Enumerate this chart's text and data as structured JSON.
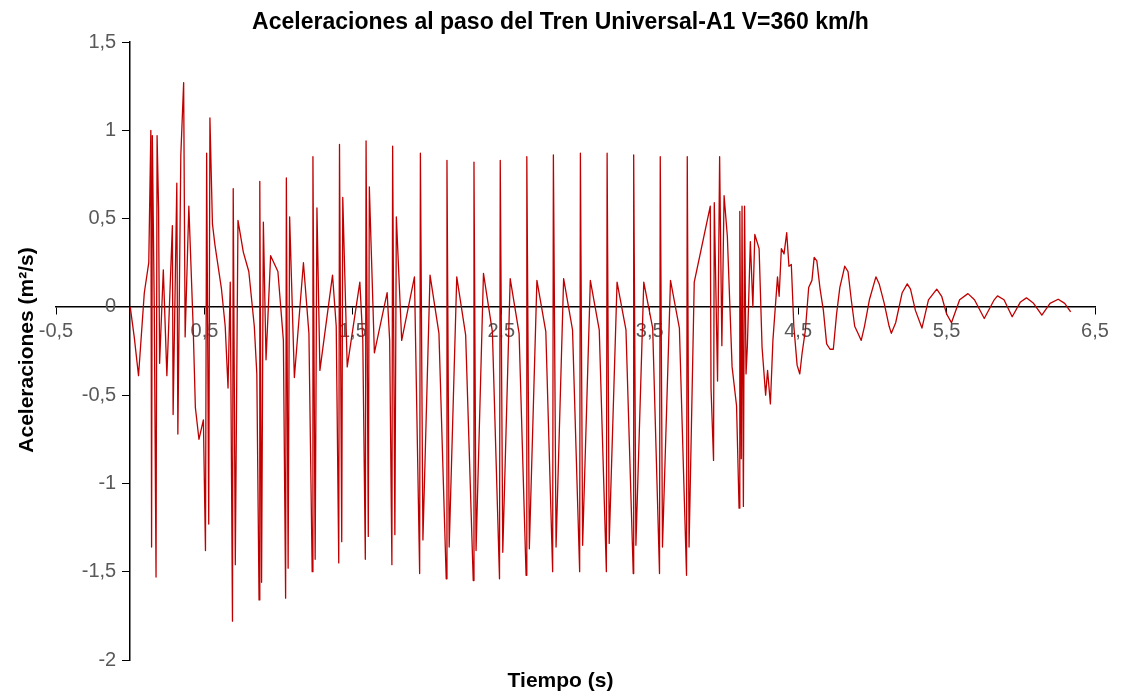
{
  "chart_data": {
    "type": "line",
    "title": "Aceleraciones al paso del Tren Universal-A1 V=360 km/h",
    "xlabel": "Tiempo (s)",
    "ylabel": "Aceleraciones (m²/s)",
    "xlim": [
      -0.5,
      6.5
    ],
    "xticks": [
      {
        "value": -0.5,
        "label": "-0,5"
      },
      {
        "value": 0.5,
        "label": "0,5"
      },
      {
        "value": 1.5,
        "label": "1,5"
      },
      {
        "value": 2.5,
        "label": "2,5"
      },
      {
        "value": 3.5,
        "label": "3,5"
      },
      {
        "value": 4.5,
        "label": "4,5"
      },
      {
        "value": 5.5,
        "label": "5,5"
      },
      {
        "value": 6.5,
        "label": "6,5"
      }
    ],
    "ylim": [
      -2,
      1.5
    ],
    "yticks": [
      {
        "value": -2,
        "label": "-2"
      },
      {
        "value": -1.5,
        "label": "-1,5"
      },
      {
        "value": -1,
        "label": "-1"
      },
      {
        "value": -0.5,
        "label": "-0,5"
      },
      {
        "value": 0,
        "label": "0"
      },
      {
        "value": 0.5,
        "label": "0,5"
      },
      {
        "value": 1,
        "label": "1"
      },
      {
        "value": 1.5,
        "label": "1,5"
      }
    ],
    "grid": false,
    "legend": false,
    "marker": "none",
    "line_style": "solid",
    "series": [
      {
        "color": "#c00000",
        "x": [
          0,
          0.027,
          0.056,
          0.095,
          0.125,
          0.139,
          0.144,
          0.149,
          0.162,
          0.174,
          0.181,
          0.191,
          0.198,
          0.223,
          0.247,
          0.284,
          0.289,
          0.314,
          0.321,
          0.341,
          0.36,
          0.37,
          0.395,
          0.424,
          0.439,
          0.463,
          0.493,
          0.507,
          0.515,
          0.529,
          0.537,
          0.554,
          0.571,
          0.615,
          0.64,
          0.659,
          0.674,
          0.689,
          0.694,
          0.708,
          0.726,
          0.762,
          0.799,
          0.836,
          0.853,
          0.868,
          0.873,
          0.885,
          0.897,
          0.915,
          0.946,
          0.995,
          1.032,
          1.047,
          1.052,
          1.064,
          1.074,
          1.106,
          1.167,
          1.204,
          1.226,
          1.231,
          1.246,
          1.258,
          1.278,
          1.363,
          1.388,
          1.405,
          1.41,
          1.425,
          1.432,
          1.462,
          1.547,
          1.567,
          1.584,
          1.589,
          1.604,
          1.611,
          1.645,
          1.731,
          1.748,
          1.763,
          1.768,
          1.783,
          1.793,
          1.829,
          1.915,
          1.95,
          1.955,
          1.972,
          2.02,
          2.08,
          2.129,
          2.134,
          2.149,
          2.2,
          2.26,
          2.311,
          2.316,
          2.33,
          2.38,
          2.44,
          2.488,
          2.493,
          2.51,
          2.56,
          2.62,
          2.667,
          2.672,
          2.689,
          2.74,
          2.8,
          2.846,
          2.851,
          2.869,
          2.92,
          2.98,
          3.028,
          3.033,
          3.048,
          3.1,
          3.16,
          3.208,
          3.213,
          3.227,
          3.28,
          3.34,
          3.389,
          3.392,
          3.407,
          3.46,
          3.52,
          3.566,
          3.571,
          3.586,
          3.64,
          3.7,
          3.748,
          3.753,
          3.765,
          3.8,
          3.908,
          3.913,
          3.93,
          3.935,
          3.957,
          3.971,
          3.986,
          4.001,
          4.023,
          4.055,
          4.085,
          4.102,
          4.107,
          4.117,
          4.122,
          4.131,
          4.139,
          4.149,
          4.158,
          4.178,
          4.195,
          4.208,
          4.237,
          4.257,
          4.281,
          4.294,
          4.313,
          4.33,
          4.361,
          4.372,
          4.387,
          4.405,
          4.423,
          4.438,
          4.454,
          4.471,
          4.493,
          4.511,
          4.527,
          4.549,
          4.571,
          4.593,
          4.608,
          4.626,
          4.648,
          4.67,
          4.692,
          4.715,
          4.737,
          4.759,
          4.781,
          4.803,
          4.814,
          4.836,
          4.858,
          4.881,
          4.903,
          4.925,
          4.947,
          4.98,
          5.024,
          5.046,
          5.08,
          5.113,
          5.128,
          5.157,
          5.201,
          5.235,
          5.257,
          5.29,
          5.334,
          5.378,
          5.434,
          5.467,
          5.5,
          5.533,
          5.588,
          5.644,
          5.688,
          5.754,
          5.821,
          5.843,
          5.887,
          5.942,
          5.998,
          6.038,
          6.086,
          6.142,
          6.197,
          6.252,
          6.296,
          6.336
        ],
        "values": [
          0,
          -0.17,
          -0.39,
          0.08,
          0.25,
          1,
          -1.36,
          0.97,
          0,
          -1.53,
          0.97,
          0.56,
          -0.32,
          0.21,
          -0.39,
          0.46,
          -0.61,
          0.7,
          -0.72,
          0.86,
          1.27,
          -0.17,
          0.57,
          -0.11,
          -0.57,
          -0.75,
          -0.64,
          -1.38,
          0.87,
          -1.23,
          1.07,
          0.47,
          0.35,
          0.1,
          -0.11,
          -0.46,
          0.14,
          -1.78,
          0.67,
          -1.46,
          0.49,
          0.31,
          0.2,
          -0.11,
          -0.38,
          -1.66,
          0.71,
          -1.56,
          0.48,
          -0.3,
          0.29,
          0.2,
          -0.19,
          -1.65,
          0.73,
          -1.48,
          0.51,
          -0.4,
          0.25,
          -0.15,
          -1.5,
          0.85,
          -1.43,
          0.56,
          -0.36,
          0.18,
          -0.11,
          -1.45,
          0.92,
          -1.33,
          0.62,
          -0.34,
          0.14,
          -0.19,
          -1.43,
          0.94,
          -1.3,
          0.68,
          -0.26,
          0.08,
          -0.19,
          -1.46,
          0.91,
          -1.29,
          0.51,
          -0.19,
          0.17,
          -1.51,
          0.87,
          -1.32,
          0.18,
          -0.15,
          -1.54,
          0.83,
          -1.36,
          0.17,
          -0.16,
          -1.55,
          0.82,
          -1.38,
          0.19,
          -0.14,
          -1.54,
          0.83,
          -1.39,
          0.16,
          -0.15,
          -1.52,
          0.85,
          -1.37,
          0.15,
          -0.14,
          -1.5,
          0.86,
          -1.36,
          0.16,
          -0.13,
          -1.5,
          0.87,
          -1.35,
          0.15,
          -0.13,
          -1.5,
          0.87,
          -1.34,
          0.14,
          -0.13,
          -1.51,
          0.86,
          -1.35,
          0.14,
          -0.12,
          -1.51,
          0.85,
          -1.36,
          0.15,
          -0.12,
          -1.52,
          0.85,
          -1.36,
          0.14,
          0.57,
          -0.46,
          -0.87,
          0.59,
          -0.42,
          0.85,
          -0.22,
          0.63,
          0.4,
          -0.34,
          -0.56,
          -1.14,
          0.54,
          -0.86,
          0.57,
          -1.13,
          0.57,
          -0.38,
          -0.22,
          0.37,
          0,
          0.41,
          0.33,
          -0.23,
          -0.5,
          -0.36,
          -0.55,
          -0.19,
          0.17,
          0.06,
          0.33,
          0.3,
          0.42,
          0.23,
          0.24,
          -0.11,
          -0.33,
          -0.38,
          -0.26,
          -0.13,
          0.11,
          0.15,
          0.28,
          0.26,
          0.1,
          -0.02,
          -0.21,
          -0.24,
          -0.24,
          -0.04,
          0.11,
          0.19,
          0.23,
          0.2,
          0.04,
          -0.11,
          -0.15,
          -0.19,
          -0.11,
          0.04,
          0.17,
          0.13,
          0.02,
          -0.11,
          -0.15,
          -0.09,
          0.08,
          0.13,
          0.1,
          -0.02,
          -0.12,
          0.04,
          0.1,
          0.06,
          -0.04,
          -0.09,
          0.04,
          0.075,
          0.04,
          -0.066,
          0.04,
          0.062,
          0.04,
          -0.056,
          0.028,
          0.051,
          0.02,
          -0.047,
          0.02,
          0.043,
          0.02,
          -0.028
        ]
      }
    ]
  }
}
